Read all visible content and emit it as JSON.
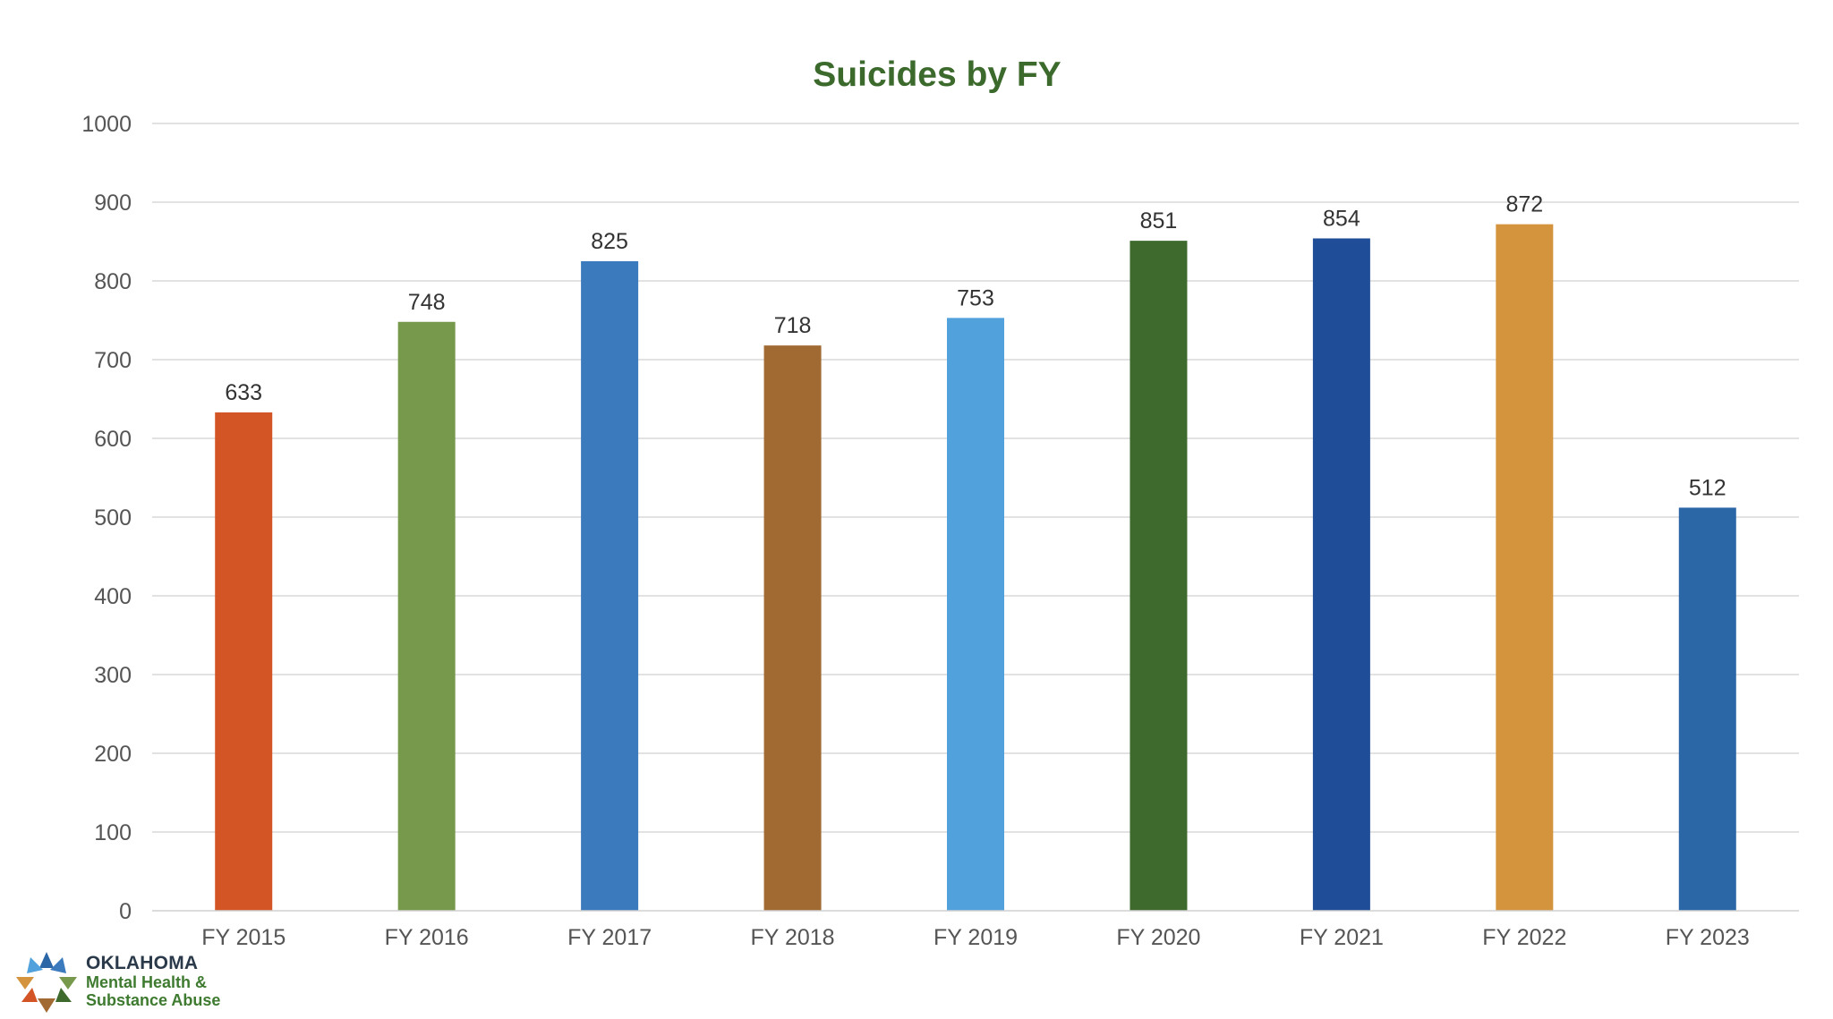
{
  "chart_data": {
    "type": "bar",
    "title": "Suicides by FY",
    "xlabel": "",
    "ylabel": "",
    "categories": [
      "FY 2015",
      "FY 2016",
      "FY 2017",
      "FY 2018",
      "FY 2019",
      "FY 2020",
      "FY 2021",
      "FY 2022",
      "FY 2023"
    ],
    "values": [
      633,
      748,
      825,
      718,
      753,
      851,
      854,
      872,
      512
    ],
    "colors": [
      "#d35424",
      "#76994b",
      "#3a7abd",
      "#a06a32",
      "#51a2dc",
      "#3e6a2d",
      "#1f4d97",
      "#d4943e",
      "#2b66a6"
    ],
    "ylim": [
      0,
      1000
    ],
    "yticks": [
      0,
      100,
      200,
      300,
      400,
      500,
      600,
      700,
      800,
      900,
      1000
    ],
    "grid": true,
    "data_labels": true,
    "title_color": "#3c6a2c"
  },
  "logo": {
    "name": "OKLAHOMA",
    "line1": "Mental Health &",
    "line2": "Substance Abuse"
  }
}
